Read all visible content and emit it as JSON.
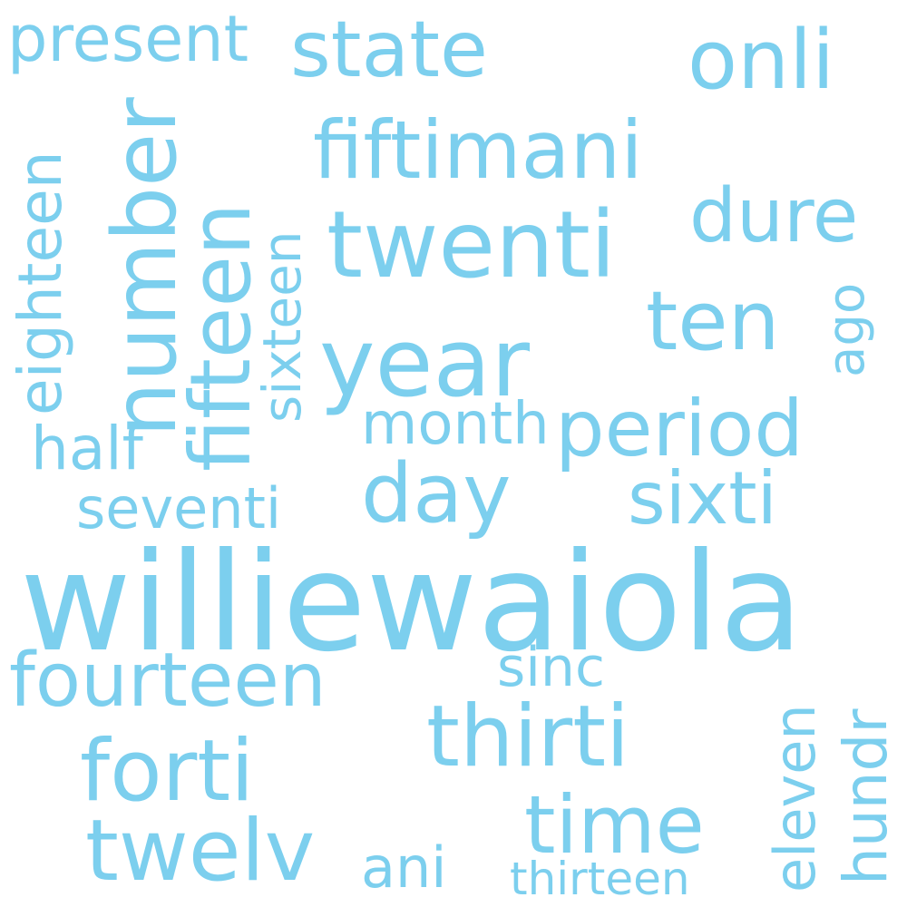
{
  "cloud": {
    "color": "#7ccfee",
    "background": "#ffffff",
    "words": {
      "williewaiola": "williewaiola",
      "twenti": "twenti",
      "year": "year",
      "fiftimani": "fiftimani",
      "state": "state",
      "onli": "onli",
      "present": "present",
      "dure": "dure",
      "ten": "ten",
      "period": "period",
      "month": "month",
      "day": "day",
      "sixti": "sixti",
      "half": "half",
      "seventi": "seventi",
      "fourteen": "fourteen",
      "sinc": "sinc",
      "thirti": "thirti",
      "forti": "forti",
      "time": "time",
      "twelv": "twelv",
      "ani": "ani",
      "thirteen": "thirteen",
      "number": "number",
      "fifteen": "fifteen",
      "eighteen": "eighteen",
      "sixteen": "sixteen",
      "ago": "ago",
      "eleven": "eleven",
      "hundr": "hundr"
    }
  }
}
